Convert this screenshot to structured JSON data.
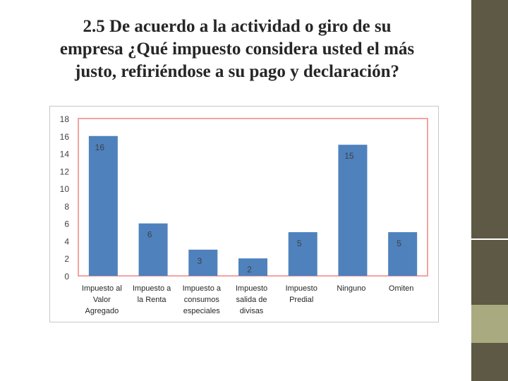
{
  "slide": {
    "title": "2.5 De acuerdo a la actividad o giro de  su\nempresa ¿Qué impuesto considera usted el más\njusto, refiriéndose a su pago y declaración?"
  },
  "colors": {
    "bar": "#4f81bd",
    "plot_border": "#f2a3a3",
    "sidebar": "#5e5944",
    "sidebar_accent": "#aaaa80"
  },
  "chart_data": {
    "type": "bar",
    "title": "",
    "xlabel": "",
    "ylabel": "",
    "ylim": [
      0,
      18
    ],
    "yticks": [
      "0",
      "2",
      "4",
      "6",
      "8",
      "10",
      "12",
      "14",
      "16",
      "18"
    ],
    "grid": false,
    "legend": "none",
    "categories": [
      "Impuesto al Valor Agregado",
      "Impuesto a la Renta",
      "Impuesto a consumos especiales",
      "Impuesto salida de divisas",
      "Impuesto Predial",
      "Ninguno",
      "Omiten"
    ],
    "category_lines": [
      [
        "Impuesto al",
        "Valor",
        "Agregado"
      ],
      [
        "Impuesto a",
        "la Renta"
      ],
      [
        "Impuesto a",
        "consumos",
        "especiales"
      ],
      [
        "Impuesto",
        "salida de",
        "divisas"
      ],
      [
        "Impuesto",
        "Predial"
      ],
      [
        "Ninguno"
      ],
      [
        "Omiten"
      ]
    ],
    "values": [
      16,
      6,
      3,
      2,
      5,
      15,
      5
    ],
    "data_labels": [
      "16",
      "6",
      "3",
      "2",
      "5",
      "15",
      "5"
    ]
  }
}
